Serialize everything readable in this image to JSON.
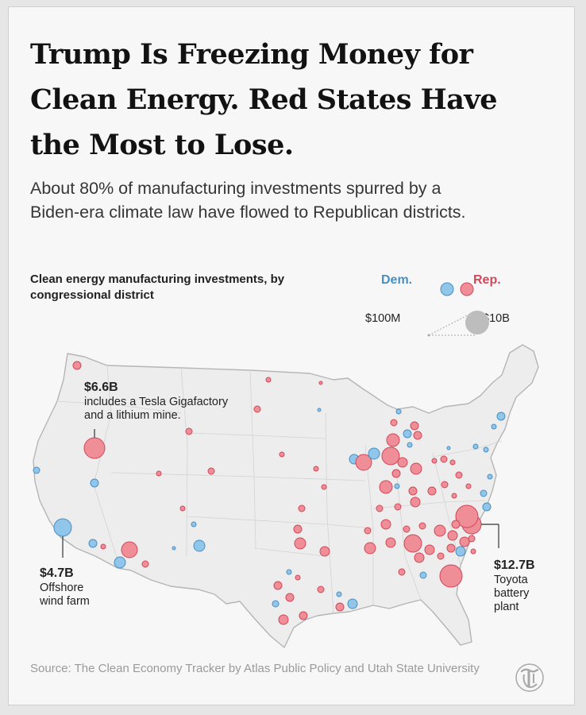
{
  "headline": "Trump Is Freezing Money for Clean Energy. Red States Have the Most to Lose.",
  "dek": "About 80% of manufacturing investments spurred by a Biden-era climate law have flowed to Republican districts.",
  "map_title": "Clean energy manufacturing investments, by congressional district",
  "legend": {
    "dem_label": "Dem.",
    "rep_label": "Rep.",
    "size_min": "$100M",
    "size_max": "$10B",
    "dem_color": "#8fc6ea",
    "rep_color": "#ef8e96",
    "size_color": "#bdbdbd"
  },
  "annotations": {
    "tesla": {
      "value": "$6.6B",
      "desc": "includes a Tesla Gigafactory\nand a lithium mine."
    },
    "wind": {
      "value": "$4.7B",
      "desc": "Offshore\nwind farm"
    },
    "toyota": {
      "value": "$12.7B",
      "desc": "Toyota\nbattery\nplant"
    }
  },
  "source": "Source: The Clean Economy Tracker by Atlas Public Policy and Utah State University",
  "logo_icon": "nyt-t-logo-icon"
}
